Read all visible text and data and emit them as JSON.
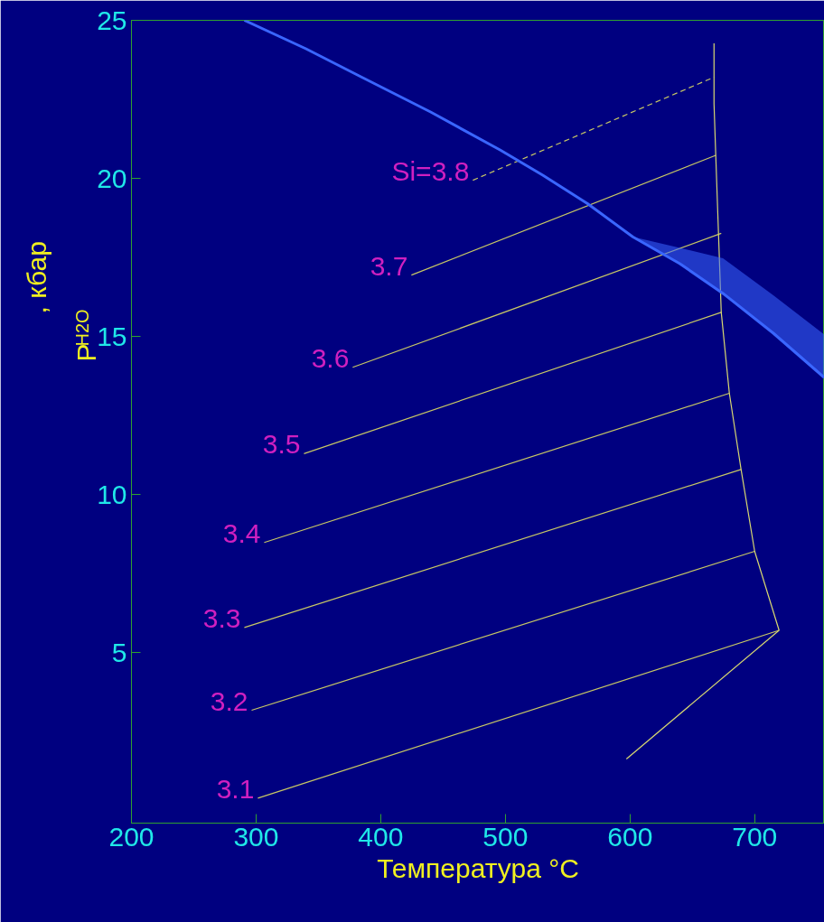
{
  "chart_data": {
    "type": "line",
    "xlabel": "Температура °C",
    "ylabel": "P$_{H2O}$ , кбар",
    "xlim": [
      200,
      756
    ],
    "ylim": [
      -0.4,
      25
    ],
    "xticks": [
      200,
      300,
      400,
      500,
      600,
      700
    ],
    "yticks": [
      5,
      10,
      15,
      20,
      25
    ],
    "grid": false,
    "marker": "none",
    "line_style": "solid",
    "series": [
      {
        "color": "#c8c864",
        "x": [
          301.4,
          719.6
        ],
        "values": [
          0.39,
          5.7
        ]
      },
      {
        "color": "#c8c864",
        "x": [
          296.4,
          700
        ],
        "values": [
          3.17,
          8.2
        ]
      },
      {
        "color": "#c8c864",
        "x": [
          290.6,
          689.1
        ],
        "values": [
          5.79,
          10.79
        ]
      },
      {
        "color": "#c8c864",
        "x": [
          306.5,
          679.7
        ],
        "values": [
          8.48,
          13.2
        ]
      },
      {
        "color": "#c8c864",
        "x": [
          338.4,
          673.2
        ],
        "values": [
          11.29,
          15.76
        ]
      },
      {
        "color": "#c8c864",
        "x": [
          377.5,
          673.2
        ],
        "values": [
          14.02,
          18.26
        ]
      },
      {
        "color": "#c8c864",
        "x": [
          424.6,
          668.8
        ],
        "values": [
          16.94,
          20.73
        ]
      },
      {
        "color": "#c8c864",
        "x": [
          473.9,
          667.4
        ],
        "values": [
          19.94,
          23.2
        ],
        "line_style": "dashed"
      },
      {
        "color": "#d8d870",
        "x": [
          719.6,
          700,
          689.1,
          679.7,
          673.2,
          668.8,
          667.4,
          667.4
        ],
        "values": [
          5.7,
          8.2,
          10.79,
          13.2,
          15.76,
          20.73,
          22.36,
          24.27
        ]
      },
      {
        "color": "#d8d870",
        "x": [
          719.6,
          597.1
        ],
        "values": [
          5.7,
          1.63
        ]
      },
      {
        "color": "#3a66ff",
        "x": [
          290.6,
          340,
          384.8,
          440,
          495.7,
          530,
          565.9,
          602.2,
          640,
          674.6,
          715,
          755.8
        ],
        "values": [
          25,
          24.1,
          23.2,
          22.1,
          20.9,
          20.1,
          19.2,
          18.15,
          17.3,
          16.36,
          15.1,
          13.7
        ],
        "lower": [
          null,
          null,
          null,
          null,
          null,
          null,
          null,
          18.15,
          17.3,
          16.36,
          15.1,
          13.7
        ],
        "upper": [
          null,
          null,
          null,
          null,
          null,
          null,
          null,
          18.15,
          17.8,
          17.47,
          16.3,
          15.06
        ]
      }
    ],
    "annotations": [
      {
        "text": "3.1",
        "x": 301.4,
        "y": 0.39
      },
      {
        "text": "3.2",
        "x": 296.4,
        "y": 3.17
      },
      {
        "text": "3.3",
        "x": 290.6,
        "y": 5.79
      },
      {
        "text": "3.4",
        "x": 306.5,
        "y": 8.48
      },
      {
        "text": "3.5",
        "x": 338.4,
        "y": 11.29
      },
      {
        "text": "3.6",
        "x": 377.5,
        "y": 14.02
      },
      {
        "text": "3.7",
        "x": 424.6,
        "y": 16.94
      },
      {
        "text": "Si=3.8",
        "x": 473.9,
        "y": 19.94
      }
    ]
  }
}
